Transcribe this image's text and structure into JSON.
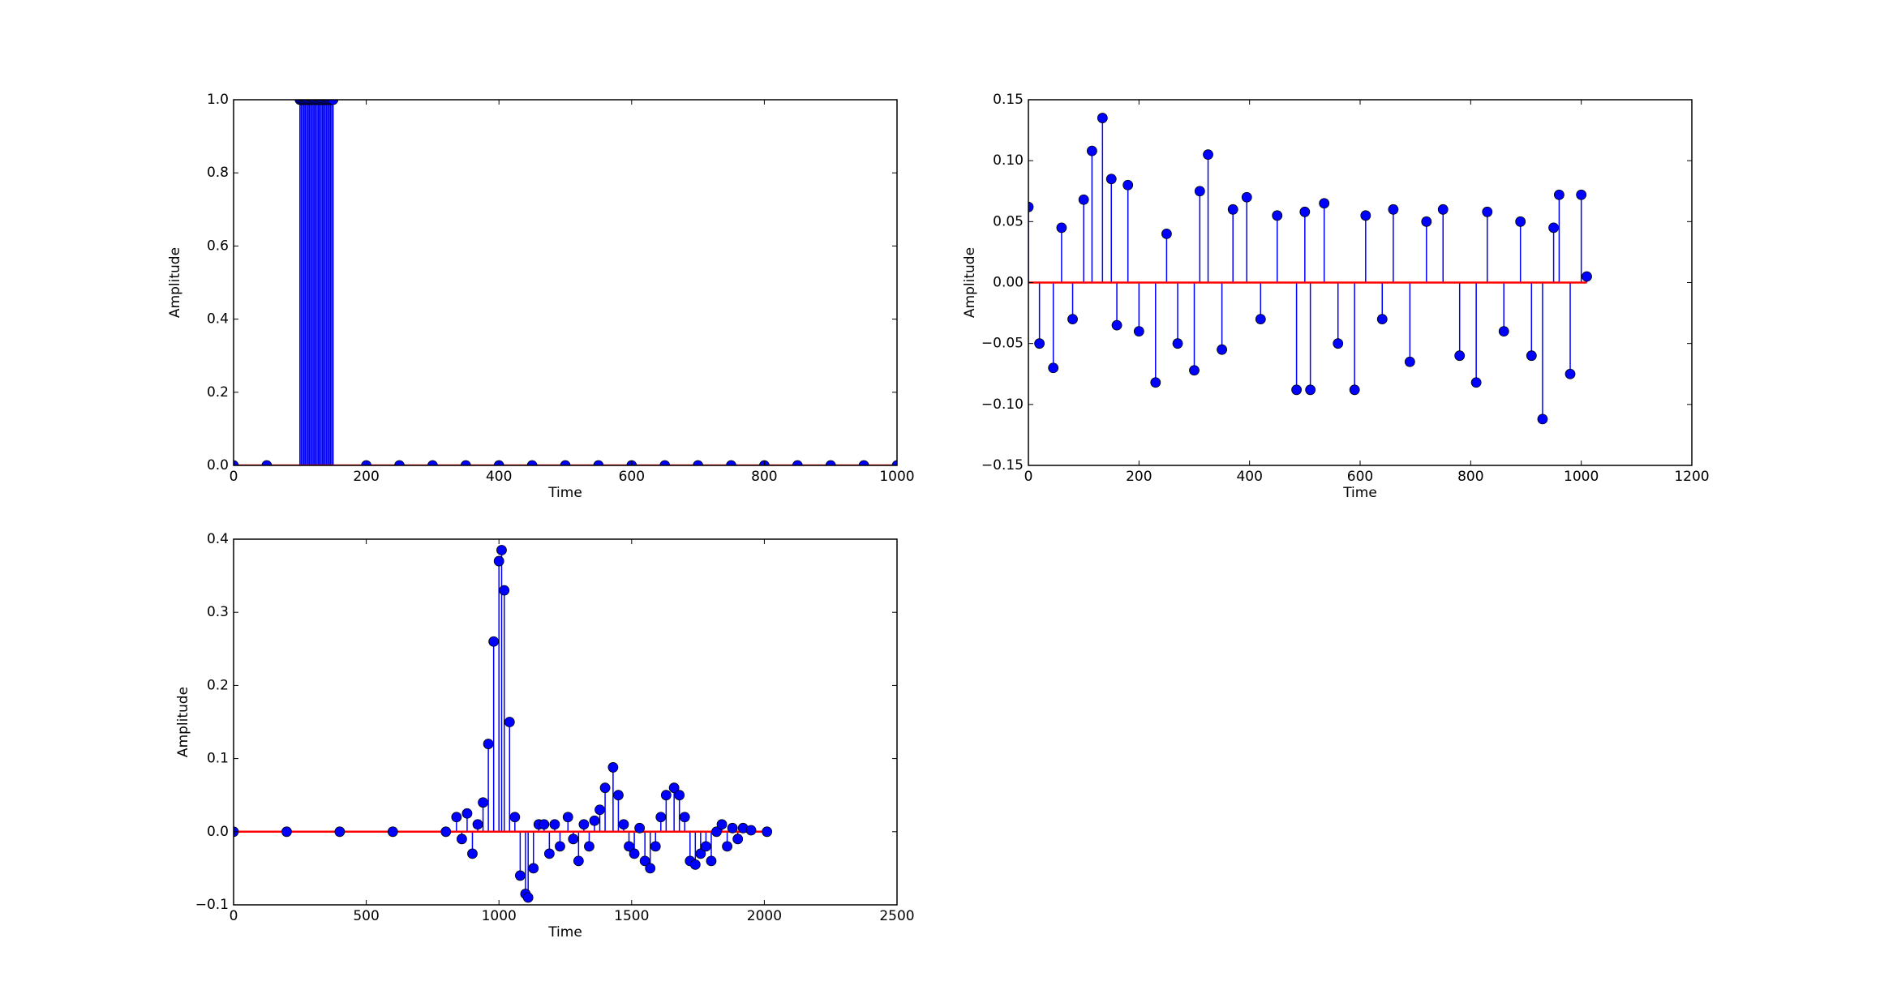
{
  "chart_data": [
    {
      "type": "stem",
      "xlabel": "Time",
      "ylabel": "Amplitude",
      "color": "#0000ff",
      "baseline_color": "#ff0000",
      "x": [
        0,
        50,
        100,
        102,
        104,
        106,
        108,
        110,
        112,
        114,
        116,
        118,
        120,
        122,
        124,
        126,
        128,
        130,
        132,
        134,
        136,
        138,
        140,
        142,
        144,
        146,
        148,
        150,
        200,
        250,
        300,
        350,
        400,
        450,
        500,
        550,
        600,
        650,
        700,
        750,
        800,
        850,
        900,
        950,
        1000
      ],
      "values": [
        0,
        0,
        1,
        1,
        1,
        1,
        1,
        1,
        1,
        1,
        1,
        1,
        1,
        1,
        1,
        1,
        1,
        1,
        1,
        1,
        1,
        1,
        1,
        1,
        1,
        1,
        1,
        1,
        0,
        0,
        0,
        0,
        0,
        0,
        0,
        0,
        0,
        0,
        0,
        0,
        0,
        0,
        0,
        0,
        0
      ],
      "xlim": [
        0,
        1000
      ],
      "ylim": [
        0,
        1
      ],
      "xticks": [
        0,
        200,
        400,
        600,
        800,
        1000
      ],
      "yticks": [
        {
          "value": 0,
          "label": "0.0"
        },
        {
          "value": 0.2,
          "label": "0.2"
        },
        {
          "value": 0.4,
          "label": "0.4"
        },
        {
          "value": 0.6,
          "label": "0.6"
        },
        {
          "value": 0.8,
          "label": "0.8"
        },
        {
          "value": 1,
          "label": "1.0"
        }
      ]
    },
    {
      "type": "stem",
      "xlabel": "Time",
      "ylabel": "Amplitude",
      "color": "#0000ff",
      "baseline_color": "#ff0000",
      "x": [
        0,
        20,
        45,
        60,
        80,
        100,
        115,
        134,
        150,
        160,
        180,
        200,
        230,
        250,
        270,
        300,
        310,
        325,
        350,
        370,
        395,
        420,
        450,
        485,
        500,
        510,
        535,
        560,
        590,
        610,
        640,
        660,
        690,
        720,
        750,
        780,
        810,
        830,
        860,
        890,
        910,
        930,
        950,
        960,
        980,
        1000,
        1010
      ],
      "values": [
        0.062,
        -0.05,
        -0.07,
        0.045,
        -0.03,
        0.068,
        0.108,
        0.135,
        0.085,
        -0.035,
        0.08,
        -0.04,
        -0.082,
        0.04,
        -0.05,
        -0.072,
        0.075,
        0.105,
        -0.055,
        0.06,
        0.07,
        -0.03,
        0.055,
        -0.088,
        0.058,
        -0.088,
        0.065,
        -0.05,
        -0.088,
        0.055,
        -0.03,
        0.06,
        -0.065,
        0.05,
        0.06,
        -0.06,
        -0.082,
        0.058,
        -0.04,
        0.05,
        -0.06,
        -0.112,
        0.045,
        0.072,
        -0.075,
        0.072,
        0.005
      ],
      "xlim": [
        0,
        1200
      ],
      "ylim": [
        -0.15,
        0.15
      ],
      "xticks": [
        0,
        200,
        400,
        600,
        800,
        1000,
        1200
      ],
      "yticks": [
        {
          "value": -0.15,
          "label": "−0.15"
        },
        {
          "value": -0.1,
          "label": "−0.10"
        },
        {
          "value": -0.05,
          "label": "−0.05"
        },
        {
          "value": 0,
          "label": "0.00"
        },
        {
          "value": 0.05,
          "label": "0.05"
        },
        {
          "value": 0.1,
          "label": "0.10"
        },
        0.15
      ]
    },
    {
      "type": "stem",
      "xlabel": "Time",
      "ylabel": "Amplitude",
      "color": "#0000ff",
      "baseline_color": "#ff0000",
      "x": [
        0,
        200,
        400,
        600,
        800,
        840,
        860,
        880,
        900,
        920,
        940,
        960,
        980,
        1000,
        1010,
        1020,
        1040,
        1060,
        1080,
        1100,
        1110,
        1130,
        1150,
        1170,
        1190,
        1210,
        1230,
        1260,
        1280,
        1300,
        1320,
        1340,
        1360,
        1380,
        1400,
        1430,
        1450,
        1470,
        1490,
        1510,
        1530,
        1550,
        1570,
        1590,
        1610,
        1630,
        1660,
        1680,
        1700,
        1720,
        1740,
        1760,
        1780,
        1800,
        1820,
        1840,
        1860,
        1880,
        1900,
        1920,
        1950,
        2010
      ],
      "values": [
        0,
        0,
        0,
        0,
        0,
        0.02,
        -0.01,
        0.025,
        -0.03,
        0.01,
        0.04,
        0.12,
        0.26,
        0.37,
        0.385,
        0.33,
        0.15,
        0.02,
        -0.06,
        -0.085,
        -0.09,
        -0.05,
        0.01,
        0.01,
        -0.03,
        0.01,
        -0.02,
        0.02,
        -0.01,
        -0.04,
        0.01,
        -0.02,
        0.015,
        0.03,
        0.06,
        0.088,
        0.05,
        0.01,
        -0.02,
        -0.03,
        0.005,
        -0.04,
        -0.05,
        -0.02,
        0.02,
        0.05,
        0.06,
        0.05,
        0.02,
        -0.04,
        -0.045,
        -0.03,
        -0.02,
        -0.04,
        0,
        0.01,
        -0.02,
        0.005,
        -0.01,
        0.005,
        0.002,
        0
      ],
      "xlim": [
        0,
        2500
      ],
      "ylim": [
        -0.1,
        0.4
      ],
      "xticks": [
        0,
        500,
        1000,
        1500,
        2000,
        2500
      ],
      "yticks": [
        {
          "value": -0.1,
          "label": "−0.1"
        },
        {
          "value": 0,
          "label": "0.0"
        },
        {
          "value": 0.1,
          "label": "0.1"
        },
        {
          "value": 0.2,
          "label": "0.2"
        },
        {
          "value": 0.3,
          "label": "0.3"
        },
        {
          "value": 0.4,
          "label": "0.4"
        }
      ]
    }
  ]
}
